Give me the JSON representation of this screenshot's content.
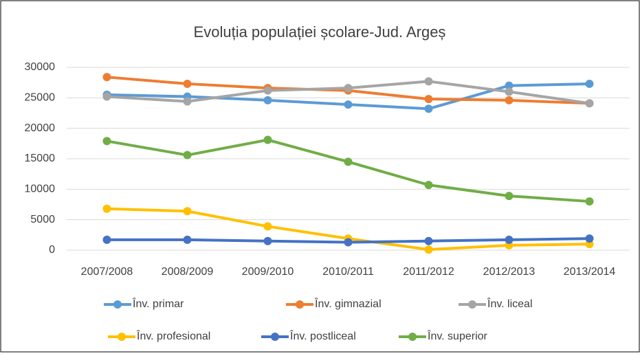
{
  "chart_data": {
    "type": "line",
    "title": "Evoluția populației școlare-Jud. Argeș",
    "categories": [
      "2007/2008",
      "2008/2009",
      "2009/2010",
      "2010/2011",
      "2011/2012",
      "2012/2013",
      "2013/2014"
    ],
    "series": [
      {
        "name": "Înv. primar",
        "color": "#5B9BD5",
        "values": [
          25500,
          25200,
          24600,
          23900,
          23200,
          27000,
          27300
        ]
      },
      {
        "name": "Înv. gimnazial",
        "color": "#ED7D31",
        "values": [
          28400,
          27300,
          26600,
          26200,
          24800,
          24600,
          24100
        ]
      },
      {
        "name": "Înv. liceal",
        "color": "#A5A5A5",
        "values": [
          25200,
          24400,
          26200,
          26600,
          27700,
          26000,
          24100
        ]
      },
      {
        "name": "Înv. profesional",
        "color": "#FFC000",
        "values": [
          6800,
          6400,
          3900,
          1900,
          100,
          800,
          1000
        ]
      },
      {
        "name": "Înv. postliceal",
        "color": "#4472C4",
        "values": [
          1700,
          1700,
          1500,
          1300,
          1500,
          1700,
          1900
        ]
      },
      {
        "name": "Înv. superior",
        "color": "#70AD47",
        "values": [
          17900,
          15600,
          18100,
          14500,
          10700,
          8900,
          8000
        ]
      }
    ],
    "ylim": [
      0,
      30000
    ],
    "yticks": [
      0,
      5000,
      10000,
      15000,
      20000,
      25000,
      30000
    ],
    "grid": true,
    "legend": "bottom"
  }
}
